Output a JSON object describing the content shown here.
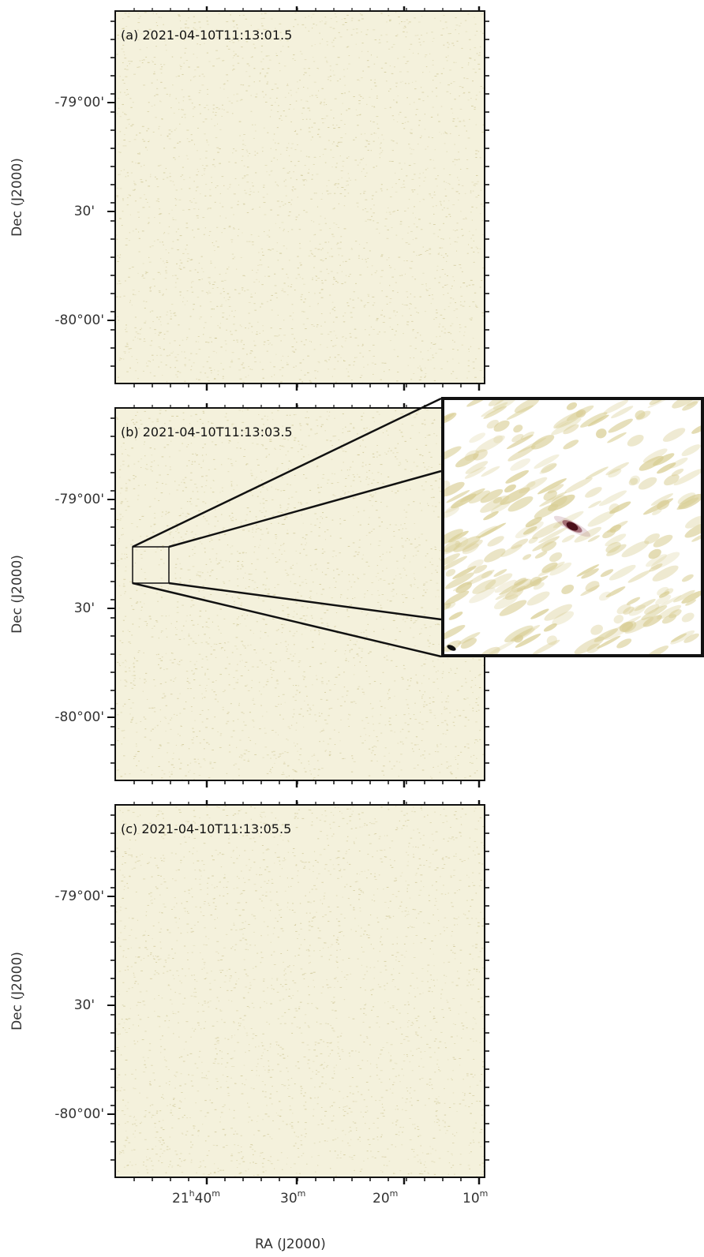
{
  "panels": [
    {
      "label": "(a) 2021-04-10T11:13:01.5"
    },
    {
      "label": "(b) 2021-04-10T11:13:03.5"
    },
    {
      "label": "(c) 2021-04-10T11:13:05.5"
    }
  ],
  "y_axis": {
    "label": "Dec (J2000)",
    "ticks": [
      "-79°00'",
      "30'",
      "-80°00'"
    ]
  },
  "x_axis": {
    "label": "RA (J2000)",
    "ticks": [
      {
        "main": "21",
        "sup1": "h",
        "mid": "40",
        "sup2": "m"
      },
      {
        "main": "30",
        "sup1": "m"
      },
      {
        "main": "20",
        "sup1": "m"
      },
      {
        "main": "10",
        "sup1": "m"
      }
    ]
  },
  "colors": {
    "background_noise": "#f4f1dc",
    "noise_speckle": "#c9c08a",
    "source": "#4a0f1a",
    "frame": "#111111"
  }
}
